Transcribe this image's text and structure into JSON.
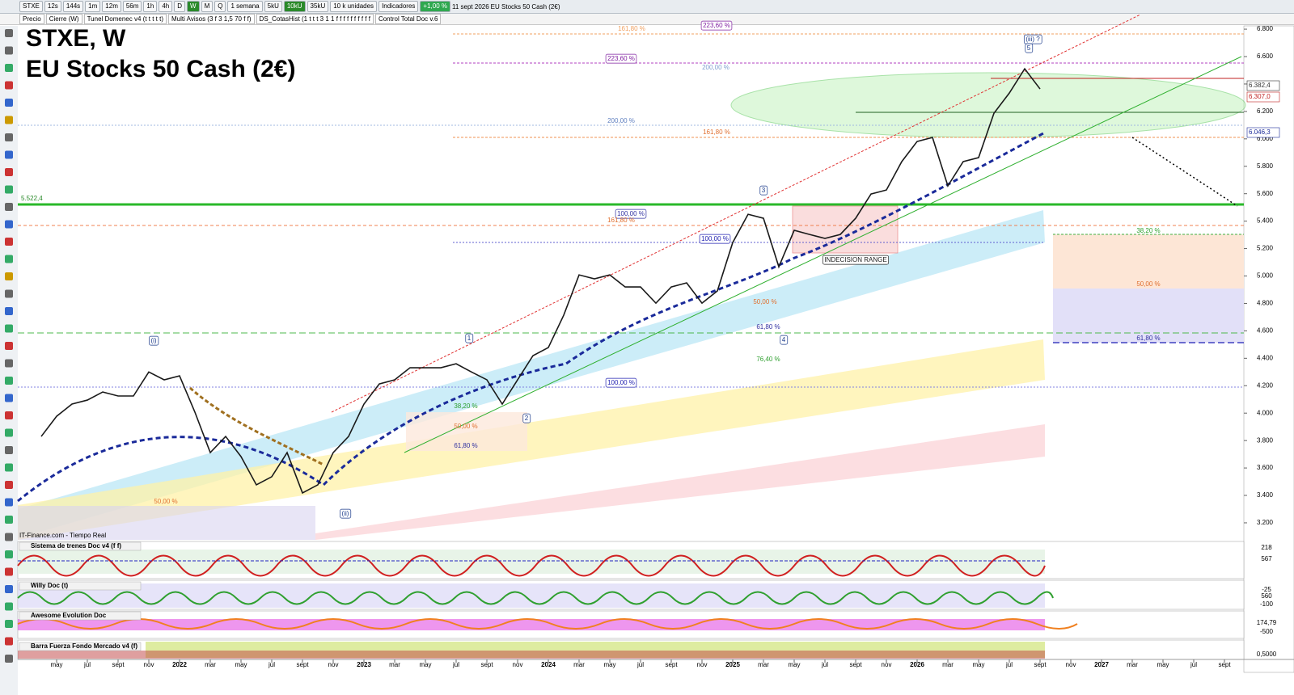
{
  "toolbar": {
    "symbol": "STXE",
    "intervals": [
      "12s",
      "144s",
      "1m",
      "12m",
      "56m",
      "1h",
      "4h",
      "D",
      "W",
      "M",
      "Q"
    ],
    "period": "1 semana",
    "units": [
      "5kU",
      "10kU",
      "35kU"
    ],
    "units_menu": "10 k unidades",
    "indicators": "Indicadores",
    "change": "+1,00 %",
    "date": "11 sept 2026",
    "instrument": "EU Stocks 50 Cash (2€)"
  },
  "tabs": [
    "Precio",
    "Cierre (W)",
    "Tunel Domenec v4 (t t t t t)",
    "Multi Avisos (3 f 3 1,5 70 f f)",
    "DS_CotasHist (1 t t t 3 1 1 f f f f f f f f f f",
    "Control Total Doc v.6"
  ],
  "chart_data": {
    "type": "line",
    "title": "STXE, W",
    "subtitle": "EU Stocks 50 Cash (2€)",
    "color": "#1a1a1a",
    "x": [
      "2021-04",
      "2021-05",
      "2021-06",
      "2021-07",
      "2021-08",
      "2021-09",
      "2021-10",
      "2021-11",
      "2021-12",
      "2022-01",
      "2022-02",
      "2022-03",
      "2022-04",
      "2022-05",
      "2022-06",
      "2022-07",
      "2022-08",
      "2022-09",
      "2022-10",
      "2022-11",
      "2022-12",
      "2023-01",
      "2023-02",
      "2023-03",
      "2023-04",
      "2023-05",
      "2023-06",
      "2023-07",
      "2023-08",
      "2023-09",
      "2023-10",
      "2023-11",
      "2023-12",
      "2024-01",
      "2024-02",
      "2024-03",
      "2024-04",
      "2024-05",
      "2024-06",
      "2024-07",
      "2024-08",
      "2024-09",
      "2024-10",
      "2024-11",
      "2024-12",
      "2025-01",
      "2025-02",
      "2025-03",
      "2025-04",
      "2025-05",
      "2025-06",
      "2025-07",
      "2025-08",
      "2025-09",
      "2025-10",
      "2025-11",
      "2025-12",
      "2026-01",
      "2026-02",
      "2026-03",
      "2026-04",
      "2026-05",
      "2026-06",
      "2026-07",
      "2026-08",
      "2026-09"
    ],
    "values": [
      3830,
      3977,
      4066,
      4095,
      4154,
      4125,
      4125,
      4300,
      4243,
      4272,
      4007,
      3712,
      3830,
      3683,
      3477,
      3536,
      3712,
      3418,
      3477,
      3712,
      3830,
      4066,
      4213,
      4243,
      4331,
      4331,
      4331,
      4360,
      4300,
      4243,
      4066,
      4243,
      4419,
      4478,
      4714,
      5008,
      4979,
      5008,
      4920,
      4920,
      4802,
      4920,
      4950,
      4802,
      4891,
      5244,
      5450,
      5421,
      5067,
      5333,
      5303,
      5274,
      5303,
      5421,
      5598,
      5627,
      5834,
      5981,
      6010,
      5657,
      5834,
      5863,
      6187,
      6334,
      6511,
      6364
    ],
    "ylim": [
      3076,
      6824
    ],
    "yticks": [
      {
        "value": 3200,
        "label": "3.200"
      },
      {
        "value": 3400,
        "label": "3.400"
      },
      {
        "value": 3600,
        "label": "3.600"
      },
      {
        "value": 3800,
        "label": "3.800"
      },
      {
        "value": 4000,
        "label": "4.000"
      },
      {
        "value": 4200,
        "label": "4.200"
      },
      {
        "value": 4400,
        "label": "4.400"
      },
      {
        "value": 4600,
        "label": "4.600"
      },
      {
        "value": 4800,
        "label": "4.800"
      },
      {
        "value": 5000,
        "label": "5.000"
      },
      {
        "value": 5200,
        "label": "5.200"
      },
      {
        "value": 5400,
        "label": "5.400"
      },
      {
        "value": 5600,
        "label": "5.600"
      },
      {
        "value": 5800,
        "label": "5.800"
      },
      {
        "value": 6000,
        "label": "6.000"
      },
      {
        "value": 6200,
        "label": "6.200"
      },
      {
        "value": 6400,
        "label": "6.400"
      },
      {
        "value": 6600,
        "label": "6.600"
      },
      {
        "value": 6800,
        "label": "6.800"
      }
    ],
    "xticks": [
      {
        "value": "2021-05",
        "label": "may"
      },
      {
        "value": "2021-07",
        "label": "jul"
      },
      {
        "value": "2021-09",
        "label": "sept"
      },
      {
        "value": "2021-11",
        "label": "nov"
      },
      {
        "value": "2022-01",
        "label": "2022"
      },
      {
        "value": "2022-03",
        "label": "mar"
      },
      {
        "value": "2022-05",
        "label": "may"
      },
      {
        "value": "2022-07",
        "label": "jul"
      },
      {
        "value": "2022-09",
        "label": "sept"
      },
      {
        "value": "2022-11",
        "label": "nov"
      },
      {
        "value": "2023-01",
        "label": "2023"
      },
      {
        "value": "2023-03",
        "label": "mar"
      },
      {
        "value": "2023-05",
        "label": "may"
      },
      {
        "value": "2023-07",
        "label": "jul"
      },
      {
        "value": "2023-09",
        "label": "sept"
      },
      {
        "value": "2023-11",
        "label": "nov"
      },
      {
        "value": "2024-01",
        "label": "2024"
      },
      {
        "value": "2024-03",
        "label": "mar"
      },
      {
        "value": "2024-05",
        "label": "may"
      },
      {
        "value": "2024-07",
        "label": "jul"
      },
      {
        "value": "2024-09",
        "label": "sept"
      },
      {
        "value": "2024-11",
        "label": "nov"
      },
      {
        "value": "2025-01",
        "label": "2025"
      },
      {
        "value": "2025-03",
        "label": "mar"
      },
      {
        "value": "2025-05",
        "label": "may"
      },
      {
        "value": "2025-07",
        "label": "jul"
      },
      {
        "value": "2025-09",
        "label": "sept"
      },
      {
        "value": "2025-11",
        "label": "nov"
      },
      {
        "value": "2026-01",
        "label": "2026"
      },
      {
        "value": "2026-03",
        "label": "mar"
      },
      {
        "value": "2026-05",
        "label": "may"
      },
      {
        "value": "2026-07",
        "label": "jul"
      },
      {
        "value": "2026-09",
        "label": "sept"
      },
      {
        "value": "2026-11",
        "label": "nov"
      },
      {
        "value": "2027-01",
        "label": "2027"
      },
      {
        "value": "2027-03",
        "label": "mar"
      },
      {
        "value": "2027-05",
        "label": "may"
      },
      {
        "value": "2027-07",
        "label": "jul"
      },
      {
        "value": "2027-09",
        "label": "sept"
      }
    ],
    "grid": false,
    "price_labels": [
      "6.382,4",
      "6.307,0",
      "6.046,3",
      "5.522,4"
    ],
    "annotations": [
      "(i)",
      "(ii)",
      "(iii) ?",
      "1",
      "2",
      "3",
      "4",
      "5",
      "INDECISION RANGE",
      "161,80 %",
      "223,60 %",
      "223,60 %",
      "200,00 %",
      "200,00 %",
      "161,80 %",
      "100,00 %",
      "161,80 %",
      "100,00 %",
      "50,00 %",
      "61,80 %",
      "76,40 %",
      "100,00 %",
      "38,20 %",
      "50,00 %",
      "61,80 %",
      "50,00 %",
      "38,20 %",
      "50,00 %",
      "61,80 %"
    ],
    "source": "IT-Finance.com - Tiempo Real"
  },
  "panels": [
    {
      "title": "Sistema de trenes Doc v4 (f f)",
      "scale": [
        "218",
        "567"
      ]
    },
    {
      "title": "Willy Doc (t)",
      "scale": [
        "-25",
        "560",
        "-100"
      ]
    },
    {
      "title": "Awesome Evolution Doc",
      "scale": [
        "174,79",
        "-500"
      ]
    },
    {
      "title": "Barra Fuerza Fondo Mercado v4 (f)",
      "scale": [
        "0,5000"
      ]
    }
  ]
}
